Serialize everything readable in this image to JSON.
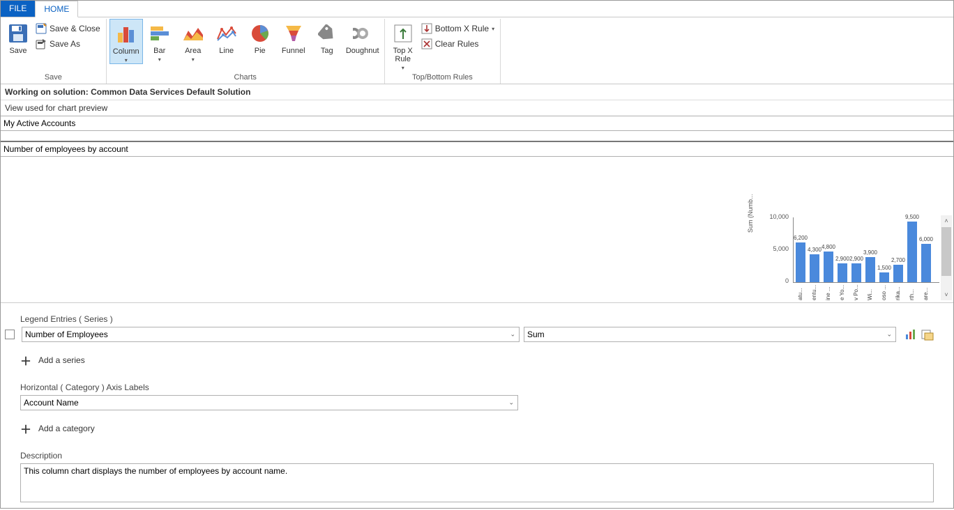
{
  "tabs": {
    "file": "FILE",
    "home": "HOME"
  },
  "ribbon": {
    "save": {
      "big": "Save",
      "save_close": "Save & Close",
      "save_as": "Save As",
      "group_label": "Save"
    },
    "charts": {
      "column": "Column",
      "bar": "Bar",
      "area": "Area",
      "line": "Line",
      "pie": "Pie",
      "funnel": "Funnel",
      "tag": "Tag",
      "doughnut": "Doughnut",
      "group_label": "Charts"
    },
    "rules": {
      "topx": "Top X\nRule",
      "bottomx": "Bottom X Rule",
      "clear": "Clear Rules",
      "group_label": "Top/Bottom Rules"
    }
  },
  "solution_prefix": "Working on solution: ",
  "solution_name": "Common Data Services Default Solution",
  "view_label": "View used for chart preview",
  "view_selected": "My Active Accounts",
  "chart_title": "Number of employees by account",
  "preview_chart": {
    "type": "bar",
    "y_title": "Sum (Numb...",
    "y_max": 10000,
    "y_ticks": [
      0,
      5000,
      10000
    ],
    "y_tick_labels": [
      "0",
      "5,000",
      "10,000"
    ],
    "bar_color": "#4a89dc",
    "axis_color": "#888888",
    "label_fontsize": 9,
    "bars": [
      {
        "cat": "atu...",
        "value": 6200,
        "label": "6,200"
      },
      {
        "cat": "entu...",
        "value": 4300,
        "label": "4,300"
      },
      {
        "cat": "ine ...",
        "value": 4800,
        "label": "4,800"
      },
      {
        "cat": "e Yo...",
        "value": 2900,
        "label": "2,900"
      },
      {
        "cat": "v Po...",
        "value": 2900,
        "label": "2,900"
      },
      {
        "cat": "Wi...",
        "value": 3900,
        "label": "3,900"
      },
      {
        "cat": "oso ...",
        "value": 1500,
        "label": "1,500"
      },
      {
        "cat": "rika...",
        "value": 2700,
        "label": "2,700"
      },
      {
        "cat": "rth...",
        "value": 9500,
        "label": "9,500"
      },
      {
        "cat": "are...",
        "value": 6000,
        "label": "6,000"
      }
    ]
  },
  "legend": {
    "label": "Legend Entries ( Series )",
    "series_value": "Number of Employees",
    "agg_value": "Sum",
    "add_series": "Add a series"
  },
  "horizontal": {
    "label": "Horizontal ( Category ) Axis Labels",
    "value": "Account Name",
    "add_category": "Add a category"
  },
  "description": {
    "label": "Description",
    "value": "This column chart displays the number of employees by account name."
  },
  "colors": {
    "accent": "#0b62c3",
    "ribbon_selected_bg": "#cde6f7"
  }
}
